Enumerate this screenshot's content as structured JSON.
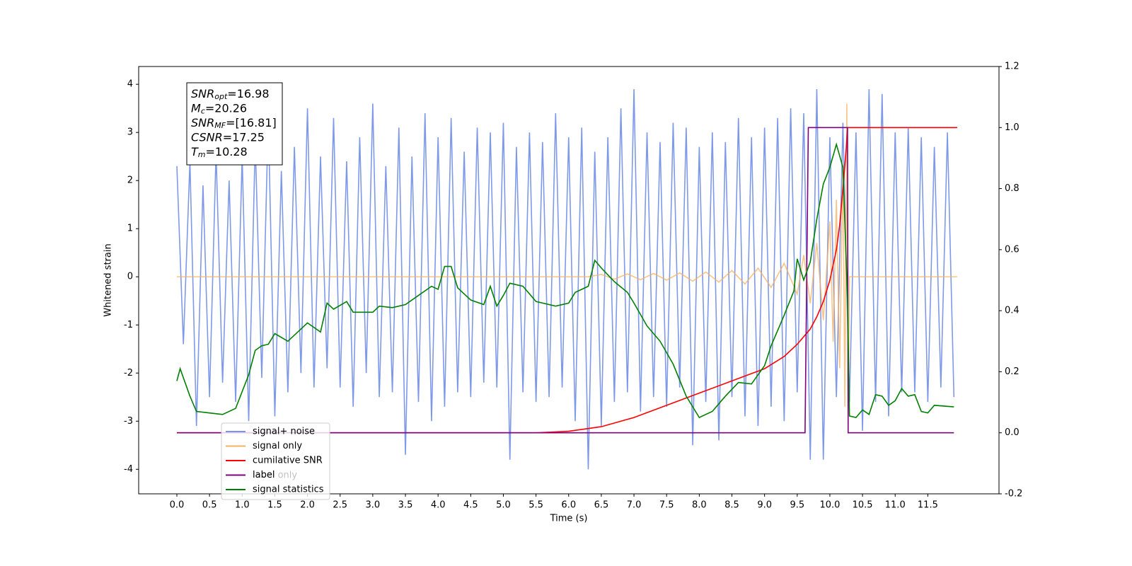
{
  "chart_data": {
    "type": "line",
    "xlabel": "Time (s)",
    "ylabel": "Whitened strain",
    "xlim": [
      -0.585,
      12.59
    ],
    "ylim": [
      -4.51,
      4.37
    ],
    "y2lim": [
      -0.2,
      1.2
    ],
    "xticks": [
      {
        "value": 0,
        "label": "0.0"
      },
      0.5,
      {
        "value": 1,
        "label": "1.0"
      },
      1.5,
      {
        "value": 2,
        "label": "2.0"
      },
      2.5,
      {
        "value": 3,
        "label": "3.0"
      },
      3.5,
      {
        "value": 4,
        "label": "4.0"
      },
      4.5,
      {
        "value": 5,
        "label": "5.0"
      },
      5.5,
      {
        "value": 6,
        "label": "6.0"
      },
      6.5,
      {
        "value": 7,
        "label": "7.0"
      },
      7.5,
      {
        "value": 8,
        "label": "8.0"
      },
      8.5,
      {
        "value": 9,
        "label": "9.0"
      },
      9.5,
      {
        "value": 10,
        "label": "10.0"
      },
      10.5,
      {
        "value": 11,
        "label": "11.0"
      },
      11.5
    ],
    "yticks": [
      -4,
      -3,
      -2,
      -1,
      0,
      1,
      2,
      3,
      4
    ],
    "y2ticks": [
      -0.2,
      {
        "value": 0,
        "label": "0.0"
      },
      0.2,
      0.4,
      0.6,
      0.8,
      {
        "value": 1,
        "label": "1.0"
      },
      1.2
    ],
    "legend": "lower left",
    "legend_overlap_text": "label only",
    "annotation_lines": [
      {
        "symbol": "SNR",
        "sub": "opt",
        "text": "=16.98"
      },
      {
        "symbol": "M",
        "sub": "c",
        "text": "=20.26"
      },
      {
        "symbol": "SNR",
        "sub": "MF",
        "text": "=[16.81]"
      },
      {
        "symbol": "CSNR",
        "sub": "",
        "text": "=17.25"
      },
      {
        "symbol": "T",
        "sub": "m",
        "text": "=10.28"
      }
    ],
    "series": [
      {
        "name": "signal+ noise",
        "color": "#7893e8",
        "axis": "y",
        "x": [
          0.0,
          0.1,
          0.2,
          0.3,
          0.4,
          0.5,
          0.6,
          0.7,
          0.8,
          0.9,
          1.0,
          1.1,
          1.2,
          1.3,
          1.4,
          1.5,
          1.6,
          1.7,
          1.8,
          1.9,
          2.0,
          2.1,
          2.2,
          2.3,
          2.4,
          2.5,
          2.6,
          2.7,
          2.8,
          2.9,
          3.0,
          3.1,
          3.2,
          3.3,
          3.4,
          3.5,
          3.6,
          3.7,
          3.8,
          3.9,
          4.0,
          4.1,
          4.2,
          4.3,
          4.4,
          4.5,
          4.6,
          4.7,
          4.8,
          4.9,
          5.0,
          5.1,
          5.2,
          5.3,
          5.4,
          5.5,
          5.6,
          5.7,
          5.8,
          5.9,
          6.0,
          6.1,
          6.2,
          6.3,
          6.4,
          6.5,
          6.6,
          6.7,
          6.8,
          6.9,
          7.0,
          7.1,
          7.2,
          7.3,
          7.4,
          7.5,
          7.6,
          7.7,
          7.8,
          7.9,
          8.0,
          8.1,
          8.2,
          8.3,
          8.4,
          8.5,
          8.6,
          8.7,
          8.8,
          8.9,
          9.0,
          9.1,
          9.2,
          9.3,
          9.4,
          9.5,
          9.6,
          9.7,
          9.8,
          9.9,
          10.0,
          10.1,
          10.2,
          10.3,
          10.4,
          10.5,
          10.6,
          10.7,
          10.8,
          10.9,
          11.0,
          11.1,
          11.2,
          11.3,
          11.4,
          11.5,
          11.6,
          11.7,
          11.8,
          11.9
        ],
        "values": [
          2.3,
          -1.4,
          2.4,
          -3.1,
          1.9,
          -2.5,
          2.6,
          -2.2,
          2.0,
          -2.6,
          2.5,
          -3.0,
          2.8,
          -2.1,
          3.3,
          -2.9,
          2.2,
          -2.4,
          2.7,
          -2.0,
          3.5,
          -2.3,
          2.5,
          -1.9,
          3.3,
          -2.3,
          2.4,
          -2.7,
          2.9,
          -2.0,
          3.6,
          -2.5,
          2.3,
          -2.4,
          3.1,
          -3.7,
          2.5,
          -2.6,
          3.4,
          -3.0,
          2.9,
          -2.7,
          3.3,
          -2.4,
          2.6,
          -2.5,
          3.1,
          -2.2,
          3.0,
          -2.3,
          3.2,
          -3.8,
          2.7,
          -2.4,
          3.0,
          -2.6,
          2.8,
          -2.5,
          3.4,
          -2.3,
          2.9,
          -3.0,
          3.1,
          -4.0,
          2.6,
          -3.1,
          2.9,
          -2.6,
          3.5,
          -2.4,
          3.9,
          -2.8,
          3.0,
          -2.5,
          2.8,
          -2.7,
          3.2,
          -2.3,
          3.1,
          -3.5,
          2.7,
          -2.6,
          3.0,
          -3.4,
          2.8,
          -2.5,
          3.3,
          -2.9,
          2.9,
          -3.1,
          3.1,
          -2.7,
          3.3,
          -3.0,
          3.5,
          -2.4,
          3.4,
          -3.8,
          3.9,
          -3.8,
          2.9,
          -2.5,
          3.2,
          -2.6,
          3.0,
          -3.2,
          3.9,
          -2.6,
          3.8,
          -2.9,
          3.0,
          -2.4,
          3.1,
          -2.4,
          2.9,
          -2.6,
          2.7,
          -2.3,
          3.0,
          -2.5
        ]
      },
      {
        "name": "signal only",
        "color": "#f5b060",
        "axis": "y",
        "x": [
          0,
          6.3,
          6.5,
          6.7,
          6.9,
          7.1,
          7.3,
          7.5,
          7.7,
          7.9,
          8.1,
          8.3,
          8.5,
          8.7,
          8.9,
          9.1,
          9.3,
          9.5,
          9.6,
          9.7,
          9.8,
          9.9,
          10.0,
          10.05,
          10.1,
          10.15,
          10.2,
          10.23,
          10.26,
          10.28,
          10.3,
          11.95
        ],
        "values": [
          0,
          0,
          0.05,
          -0.05,
          0.06,
          -0.06,
          0.07,
          -0.07,
          0.08,
          -0.09,
          0.1,
          -0.11,
          0.13,
          -0.15,
          0.18,
          -0.22,
          0.28,
          -0.36,
          0.45,
          -0.55,
          0.7,
          -0.9,
          1.15,
          -1.35,
          1.6,
          -1.9,
          2.3,
          -2.7,
          3.6,
          -3.1,
          0,
          0
        ]
      },
      {
        "name": "cumilative SNR",
        "color": "#ff0000",
        "axis": "y2",
        "x": [
          0,
          5.5,
          6.0,
          6.5,
          7.0,
          7.5,
          8.0,
          8.5,
          9.0,
          9.3,
          9.5,
          9.7,
          9.8,
          9.9,
          10.0,
          10.1,
          10.15,
          10.2,
          10.25,
          10.27,
          11.95
        ],
        "values": [
          0,
          0,
          0.005,
          0.02,
          0.05,
          0.09,
          0.13,
          0.17,
          0.21,
          0.25,
          0.29,
          0.34,
          0.38,
          0.43,
          0.5,
          0.6,
          0.68,
          0.8,
          0.93,
          1.0,
          1.0
        ]
      },
      {
        "name": "label",
        "color": "#800080",
        "axis": "y2",
        "x": [
          0,
          9.62,
          9.67,
          10.27,
          10.28,
          11.9
        ],
        "values": [
          0,
          0,
          1,
          1,
          0,
          0
        ]
      },
      {
        "name": "signal statistics",
        "color": "#008000",
        "axis": "y2",
        "x": [
          0.0,
          0.05,
          0.2,
          0.3,
          0.5,
          0.7,
          0.9,
          1.0,
          1.1,
          1.2,
          1.3,
          1.4,
          1.5,
          1.7,
          1.9,
          2.0,
          2.2,
          2.3,
          2.4,
          2.6,
          2.7,
          3.0,
          3.1,
          3.3,
          3.5,
          3.7,
          3.9,
          4.0,
          4.1,
          4.2,
          4.3,
          4.5,
          4.7,
          4.8,
          4.9,
          5.0,
          5.1,
          5.3,
          5.5,
          5.8,
          6.0,
          6.1,
          6.3,
          6.4,
          6.5,
          6.7,
          6.9,
          7.0,
          7.2,
          7.4,
          7.6,
          7.8,
          8.0,
          8.2,
          8.4,
          8.6,
          8.8,
          9.0,
          9.1,
          9.3,
          9.45,
          9.5,
          9.6,
          9.7,
          9.8,
          9.9,
          10.0,
          10.1,
          10.2,
          10.27,
          10.3,
          10.4,
          10.5,
          10.6,
          10.7,
          10.8,
          10.9,
          11.0,
          11.1,
          11.2,
          11.3,
          11.4,
          11.5,
          11.6,
          11.9
        ],
        "values": [
          0.17,
          0.21,
          0.12,
          0.07,
          0.065,
          0.06,
          0.08,
          0.135,
          0.19,
          0.27,
          0.285,
          0.29,
          0.325,
          0.3,
          0.34,
          0.36,
          0.33,
          0.425,
          0.405,
          0.43,
          0.395,
          0.395,
          0.415,
          0.41,
          0.42,
          0.45,
          0.48,
          0.47,
          0.545,
          0.545,
          0.475,
          0.435,
          0.42,
          0.48,
          0.415,
          0.45,
          0.49,
          0.48,
          0.43,
          0.415,
          0.425,
          0.46,
          0.48,
          0.565,
          0.54,
          0.495,
          0.46,
          0.425,
          0.35,
          0.3,
          0.225,
          0.12,
          0.05,
          0.07,
          0.12,
          0.165,
          0.16,
          0.22,
          0.285,
          0.385,
          0.465,
          0.57,
          0.5,
          0.56,
          0.7,
          0.815,
          0.87,
          0.945,
          0.87,
          0.44,
          0.055,
          0.05,
          0.075,
          0.06,
          0.125,
          0.12,
          0.09,
          0.105,
          0.145,
          0.12,
          0.125,
          0.07,
          0.065,
          0.09,
          0.085
        ]
      }
    ]
  }
}
